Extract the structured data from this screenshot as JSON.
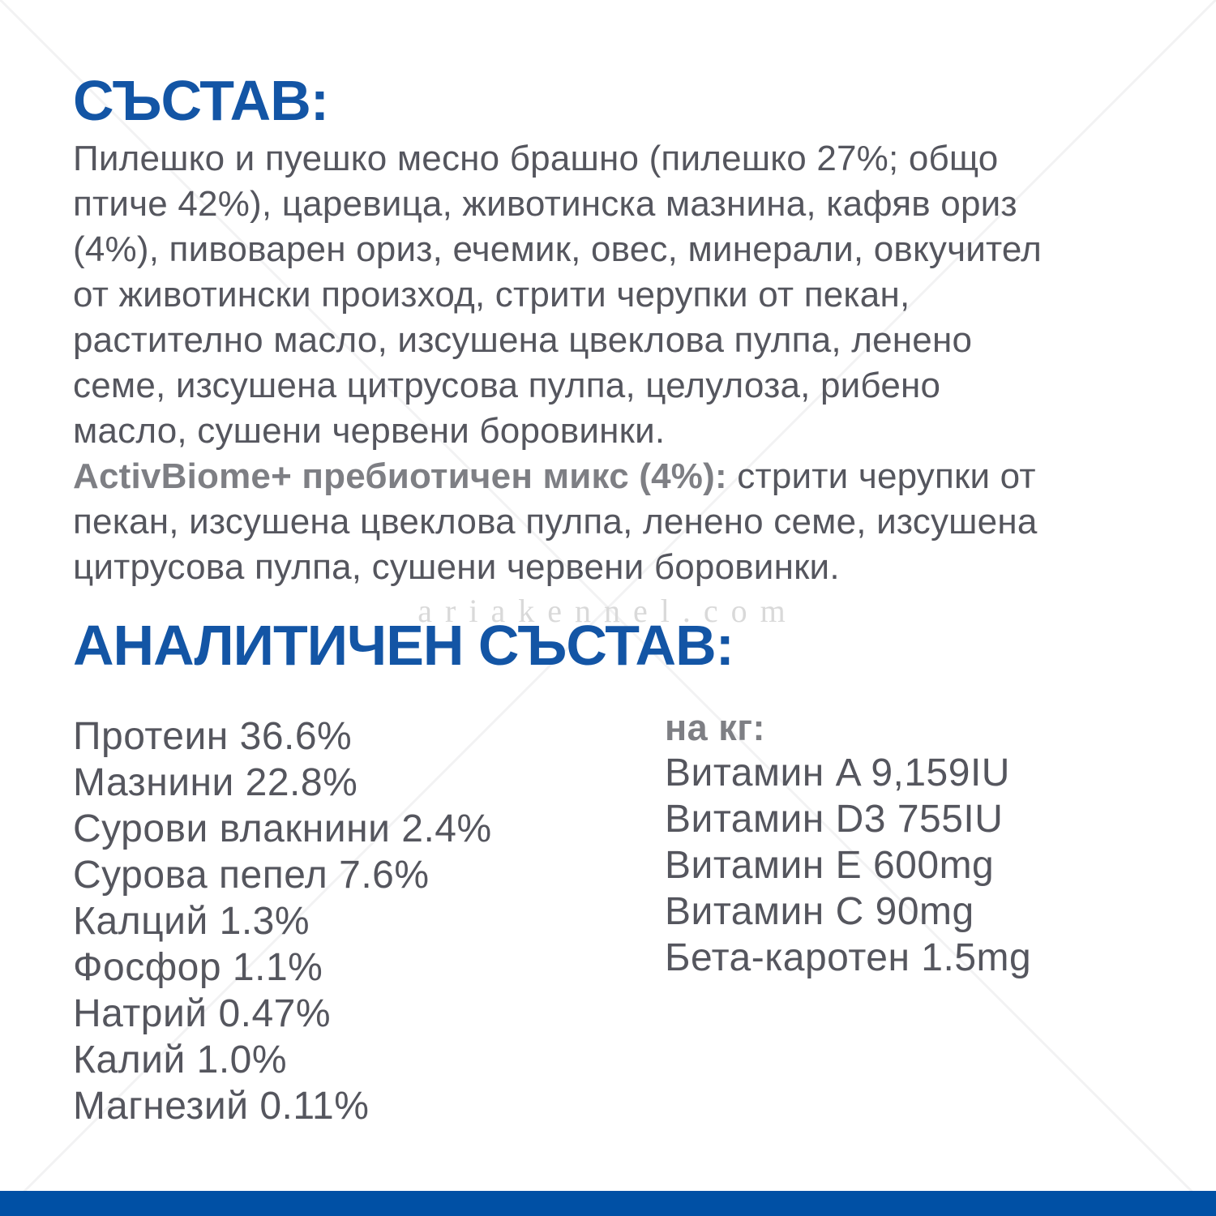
{
  "colors": {
    "heading_blue": "#1355a5",
    "bottom_bar_blue": "#0050a5",
    "body_text_gray": "#55565e",
    "bold_label_gray": "#7e7f84",
    "watermark_gray": "#d9d9d9"
  },
  "composition": {
    "title": "СЪСТАВ:",
    "lines": [
      "Пилешко и пуешко месно брашно (пилешко 27%; общо",
      "птиче 42%), царевица, животинска мазнина, кафяв ориз",
      "(4%), пивоварен ориз, ечемик, овес, минерали, овкучител",
      "от животински произход, стрити черупки от пекан,",
      "растително масло, изсушена цвеклова пулпа, ленено",
      "семе, изсушена цитрусова пулпа, целулоза, рибено",
      "масло, сушени червени боровинки."
    ],
    "prebiotic_bold": "ActivBiome+ пребиотичен микс (4%):",
    "prebiotic_tail": " стрити черупки от",
    "prebiotic_lines": [
      "пекан, изсушена цвеклова пулпа, ленено семе, изсушена",
      "цитрусова пулпа, сушени червени боровинки."
    ]
  },
  "watermark": {
    "text": "ariakennel.com"
  },
  "analysis": {
    "title": "АНАЛИТИЧЕН СЪСТАВ:",
    "nutrients": [
      "Протеин 36.6%",
      "Мазнини 22.8%",
      "Сурови влакнини 2.4%",
      "Сурова пепел 7.6%",
      "Калций 1.3%",
      "Фосфор 1.1%",
      "Натрий 0.47%",
      "Калий 1.0%",
      "Магнезий 0.11%"
    ],
    "per_kg_label": "на кг:",
    "vitamins": [
      "Витамин A 9,159IU",
      "Витамин D3 755IU",
      "Витамин E 600mg",
      "Витамин C 90mg",
      "Бета-каротен 1.5mg"
    ]
  }
}
